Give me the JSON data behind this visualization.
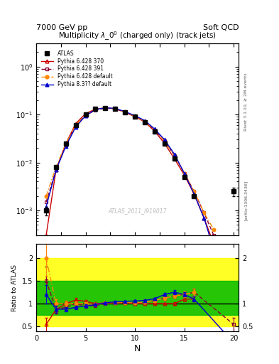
{
  "title_left": "7000 GeV pp",
  "title_right": "Soft QCD",
  "plot_title": "Multiplicity $\\lambda\\_0^0$ (charged only) (track jets)",
  "right_label_top": "Rivet 3.1.10, ≥ 2M events",
  "right_label_bottom": "[arXiv:1306.3436]",
  "watermark": "ATLAS_2011_I919017",
  "xlabel": "N",
  "ylabel_bottom": "Ratio to ATLAS",
  "xlim": [
    0,
    20.5
  ],
  "ylim_top_log_min": 0.0003,
  "ylim_top_log_max": 3.0,
  "ylim_bottom_min": 0.4,
  "ylim_bottom_max": 2.3,
  "N_data": [
    1,
    2,
    3,
    4,
    5,
    6,
    7,
    8,
    9,
    10,
    11,
    12,
    13,
    14,
    15,
    16,
    17,
    18,
    19,
    20
  ],
  "atlas_y": [
    0.001,
    0.008,
    0.025,
    0.06,
    0.1,
    0.13,
    0.135,
    0.13,
    0.11,
    0.09,
    0.07,
    0.045,
    0.025,
    0.012,
    0.005,
    0.002,
    null,
    null,
    null,
    0.0025
  ],
  "atlas_yerr": [
    0.0002,
    0.0005,
    0.001,
    0.002,
    0.003,
    0.004,
    0.004,
    0.004,
    0.003,
    0.003,
    0.002,
    0.002,
    0.001,
    0.0005,
    0.0002,
    0.0001,
    null,
    null,
    null,
    0.0005
  ],
  "py6_370_y": [
    0.0003,
    0.007,
    0.025,
    0.065,
    0.105,
    0.13,
    0.138,
    0.132,
    0.112,
    0.09,
    0.07,
    0.045,
    0.025,
    0.012,
    0.0055,
    0.0022,
    0.0007,
    0.0002,
    null,
    null
  ],
  "py6_391_y": [
    0.0015,
    0.007,
    0.023,
    0.06,
    0.095,
    0.125,
    0.135,
    0.132,
    0.112,
    0.092,
    0.072,
    0.048,
    0.028,
    0.014,
    0.006,
    0.0025,
    0.0009,
    0.0003,
    0.0001,
    null
  ],
  "py6_def_y": [
    0.002,
    0.008,
    0.025,
    0.06,
    0.1,
    0.128,
    0.138,
    0.132,
    0.112,
    0.092,
    0.072,
    0.048,
    0.028,
    0.014,
    0.006,
    0.0025,
    0.0009,
    0.0004,
    null,
    null
  ],
  "py8_y": [
    0.0012,
    0.007,
    0.022,
    0.055,
    0.095,
    0.128,
    0.138,
    0.135,
    0.115,
    0.095,
    0.075,
    0.05,
    0.03,
    0.015,
    0.006,
    0.0022,
    0.0007,
    0.00015,
    null,
    null
  ],
  "color_py6_370": "#cc0000",
  "color_py6_391": "#880033",
  "color_py6_def": "#ff8800",
  "color_py8": "#0000cc",
  "color_atlas": "#000000",
  "band_yellow": "#ffff00",
  "band_green": "#00bb00",
  "legend_atlas": "ATLAS",
  "legend_py6_370": "Pythia 6.428 370",
  "legend_py6_391": "Pythia 6.428 391",
  "legend_py6_def": "Pythia 6.428 default",
  "legend_py8": "Pythia 8.3?? default",
  "ratio_py6_370": [
    0.55,
    0.87,
    1.0,
    1.08,
    1.05,
    1.0,
    1.02,
    1.02,
    1.02,
    1.0,
    1.0,
    1.0,
    1.0,
    1.0,
    1.1,
    1.1,
    null,
    null,
    null,
    null
  ],
  "ratio_py6_391": [
    1.5,
    0.88,
    0.92,
    1.0,
    0.95,
    0.96,
    1.0,
    1.02,
    1.02,
    1.02,
    1.03,
    1.07,
    1.12,
    1.17,
    1.2,
    1.25,
    null,
    null,
    null,
    0.55
  ],
  "ratio_py6_def": [
    2.0,
    1.0,
    1.0,
    1.0,
    1.0,
    0.98,
    1.02,
    1.02,
    1.02,
    1.02,
    1.03,
    1.07,
    1.12,
    1.17,
    1.2,
    1.25,
    null,
    null,
    null,
    null
  ],
  "ratio_py8": [
    1.2,
    0.88,
    0.88,
    0.92,
    0.95,
    0.98,
    1.02,
    1.04,
    1.05,
    1.06,
    1.07,
    1.11,
    1.2,
    1.25,
    1.2,
    1.1,
    null,
    null,
    null,
    0.15
  ],
  "ratio_yerr_py6_370": [
    0.15,
    0.08,
    0.05,
    0.04,
    0.03,
    0.03,
    0.02,
    0.02,
    0.02,
    0.02,
    0.02,
    0.02,
    0.02,
    0.03,
    0.04,
    0.05,
    null,
    null,
    null,
    null
  ],
  "ratio_yerr_py6_391": [
    0.3,
    0.1,
    0.06,
    0.05,
    0.04,
    0.03,
    0.02,
    0.02,
    0.02,
    0.02,
    0.02,
    0.03,
    0.04,
    0.05,
    0.06,
    0.08,
    null,
    null,
    null,
    0.15
  ],
  "ratio_yerr_py6_def": [
    0.4,
    0.1,
    0.06,
    0.05,
    0.04,
    0.03,
    0.02,
    0.02,
    0.02,
    0.02,
    0.02,
    0.03,
    0.04,
    0.05,
    0.06,
    0.08,
    null,
    null,
    null,
    null
  ],
  "ratio_yerr_py8": [
    0.2,
    0.08,
    0.05,
    0.04,
    0.03,
    0.03,
    0.02,
    0.02,
    0.02,
    0.02,
    0.02,
    0.02,
    0.03,
    0.04,
    0.05,
    0.05,
    null,
    null,
    null,
    0.08
  ]
}
